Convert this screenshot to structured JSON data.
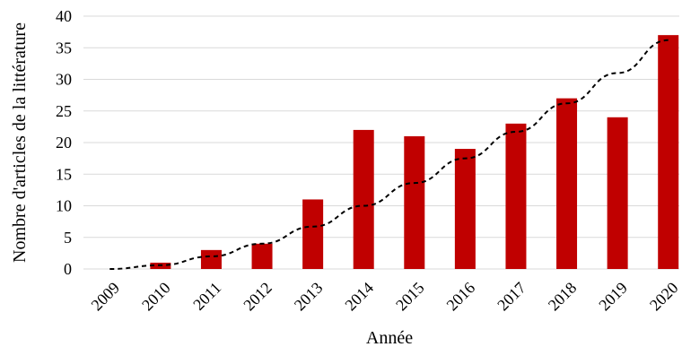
{
  "chart_data": {
    "type": "bar",
    "categories": [
      "2009",
      "2010",
      "2011",
      "2012",
      "2013",
      "2014",
      "2015",
      "2016",
      "2017",
      "2018",
      "2019",
      "2020"
    ],
    "values": [
      0,
      1,
      3,
      4,
      11,
      22,
      21,
      19,
      23,
      27,
      24,
      37
    ],
    "trendline": {
      "style": "dashed",
      "kind": "polynomial",
      "values": [
        0.0,
        0.6,
        2.0,
        4.0,
        6.7,
        10.0,
        13.6,
        17.5,
        21.7,
        26.2,
        31.0,
        36.2
      ]
    },
    "xlabel": "Année",
    "ylabel": "Nombre d'articles de la littérature",
    "ylim": [
      0,
      40
    ],
    "yticks": [
      0,
      5,
      10,
      15,
      20,
      25,
      30,
      35,
      40
    ],
    "grid": true,
    "legend": "none",
    "colors": {
      "bar": "#c00000",
      "trendline": "#000000",
      "grid": "#d9d9d9"
    }
  }
}
